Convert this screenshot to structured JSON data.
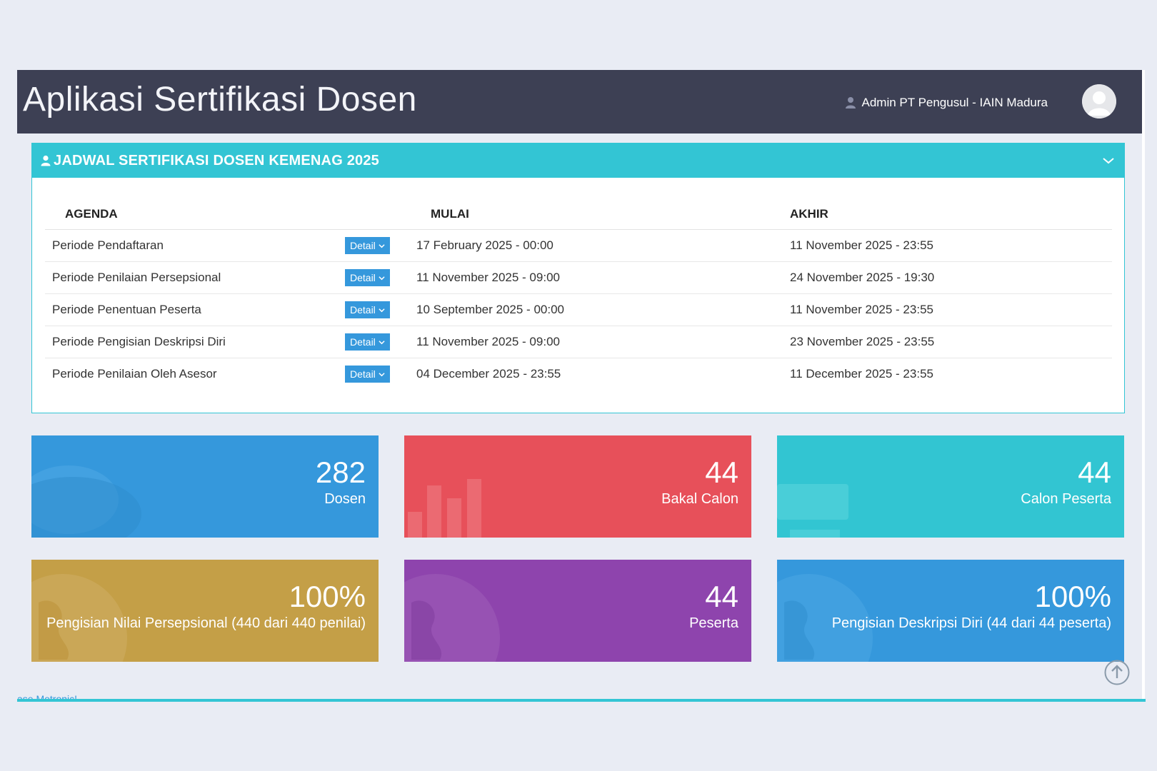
{
  "header": {
    "title": "Aplikasi Sertifikasi Dosen",
    "user_name": "Admin PT Pengusul - IAIN Madura"
  },
  "panel": {
    "title": "JADWAL SERTIFIKASI DOSEN KEMENAG 2025",
    "columns": {
      "agenda": "AGENDA",
      "mulai": "MULAI",
      "akhir": "AKHIR"
    },
    "detail_label": "Detail",
    "rows": [
      {
        "agenda": "Periode Pendaftaran",
        "mulai": "17 February 2025 - 00:00",
        "akhir": "11 November 2025 - 23:55"
      },
      {
        "agenda": "Periode Penilaian Persepsional",
        "mulai": "11 November 2025 - 09:00",
        "akhir": "24 November 2025 - 19:30"
      },
      {
        "agenda": "Periode Penentuan Peserta",
        "mulai": "10 September 2025 - 00:00",
        "akhir": "11 November 2025 - 23:55"
      },
      {
        "agenda": "Periode Pengisian Deskripsi Diri",
        "mulai": "11 November 2025 - 09:00",
        "akhir": "23 November 2025 - 23:55"
      },
      {
        "agenda": "Periode Penilaian Oleh Asesor",
        "mulai": "04 December 2025 - 23:55",
        "akhir": "11 December 2025 - 23:55"
      }
    ]
  },
  "stats": [
    {
      "number": "282",
      "label": "Dosen",
      "color": "#3598dc",
      "icon": "comments-icon"
    },
    {
      "number": "44",
      "label": "Bakal Calon",
      "color": "#e7505a",
      "icon": "bar-chart-icon"
    },
    {
      "number": "44",
      "label": "Calon Peserta",
      "color": "#32c5d2",
      "icon": "shopping-cart-icon"
    },
    {
      "number": "100%",
      "label": "Pengisian Nilai Persepsional (440 dari 440 penilai)",
      "color": "#c49f47",
      "icon": "globe-icon"
    },
    {
      "number": "44",
      "label": "Peserta",
      "color": "#8e44ad",
      "icon": "globe-icon"
    },
    {
      "number": "100%",
      "label": "Pengisian Deskripsi Diri (44 dari 44 peserta)",
      "color": "#3598dc",
      "icon": "globe-icon"
    }
  ],
  "footer": {
    "text": "ase Metronic!"
  }
}
